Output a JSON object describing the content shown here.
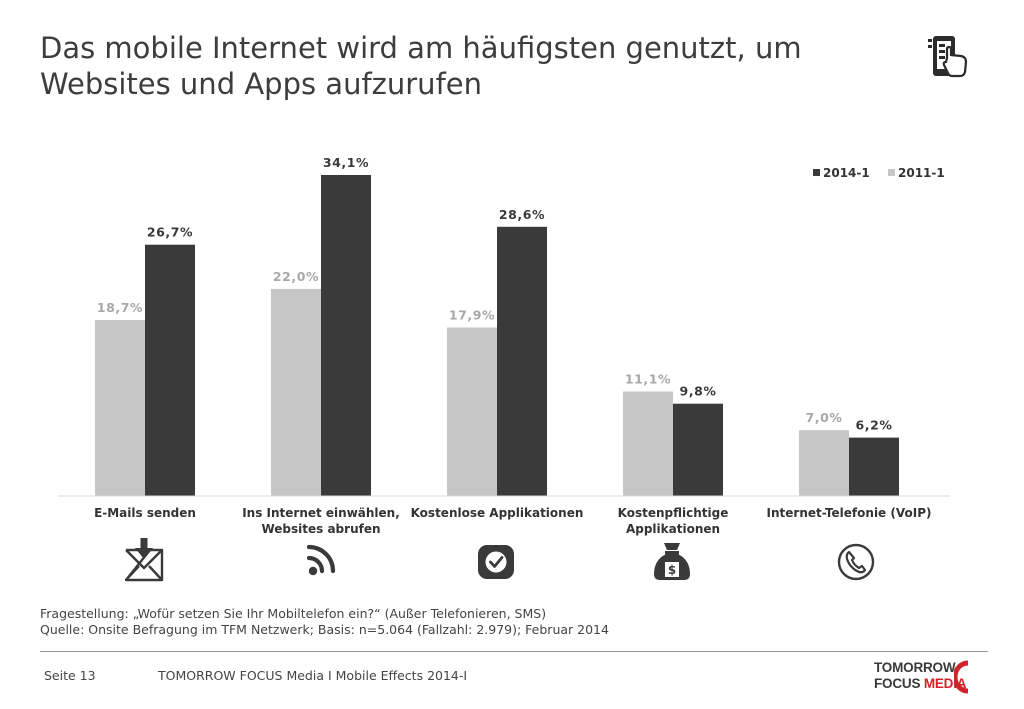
{
  "title": {
    "line1": "Das mobile Internet wird am häufigsten genutzt, um",
    "line2": "Websites und Apps aufzurufen"
  },
  "chart_data": {
    "type": "bar",
    "categories": [
      [
        "E-Mails senden"
      ],
      [
        "Ins Internet einwählen,",
        "Websites abrufen"
      ],
      [
        "Kostenlose Applikationen"
      ],
      [
        "Kostenpflichtige",
        "Applikationen"
      ],
      [
        "Internet-Telefonie (VoIP)"
      ]
    ],
    "series": [
      {
        "name": "2011-1",
        "color": "#c6c6c6",
        "label_color": "#a8a8a8",
        "values": [
          18.7,
          22.0,
          17.9,
          11.1,
          7.0
        ],
        "labels": [
          "18,7%",
          "22,0%",
          "17,9%",
          "11,1%",
          "7,0%"
        ]
      },
      {
        "name": "2014-1",
        "color": "#3a3a3a",
        "label_color": "#3a3a3a",
        "values": [
          26.7,
          34.1,
          28.6,
          9.8,
          6.2
        ],
        "labels": [
          "26,7%",
          "34,1%",
          "28,6%",
          "9,8%",
          "6,2%"
        ]
      }
    ],
    "legend": {
      "position": "top-right",
      "order": [
        "2014-1",
        "2011-1"
      ]
    },
    "ylim": [
      0,
      34.1
    ],
    "grid": false
  },
  "category_icons": [
    "envelope-download-icon",
    "rss-feed-icon",
    "checkmark-app-icon",
    "money-bag-icon",
    "phone-call-icon"
  ],
  "footnote": {
    "question": "Fragestellung: „Wofür setzen Sie Ihr Mobiltelefon ein?“ (Außer Telefonieren, SMS)",
    "source": "Quelle: Onsite Befragung im TFM Netzwerk; Basis: n=5.064 (Fallzahl: 2.979); Februar 2014"
  },
  "footer": {
    "page": "Seite 13",
    "document": "TOMORROW FOCUS Media  I  Mobile Effects 2014-I"
  },
  "logo": {
    "line1": "TOMORROW",
    "line2a": "FOCUS",
    "line2b": "MEDIA"
  }
}
